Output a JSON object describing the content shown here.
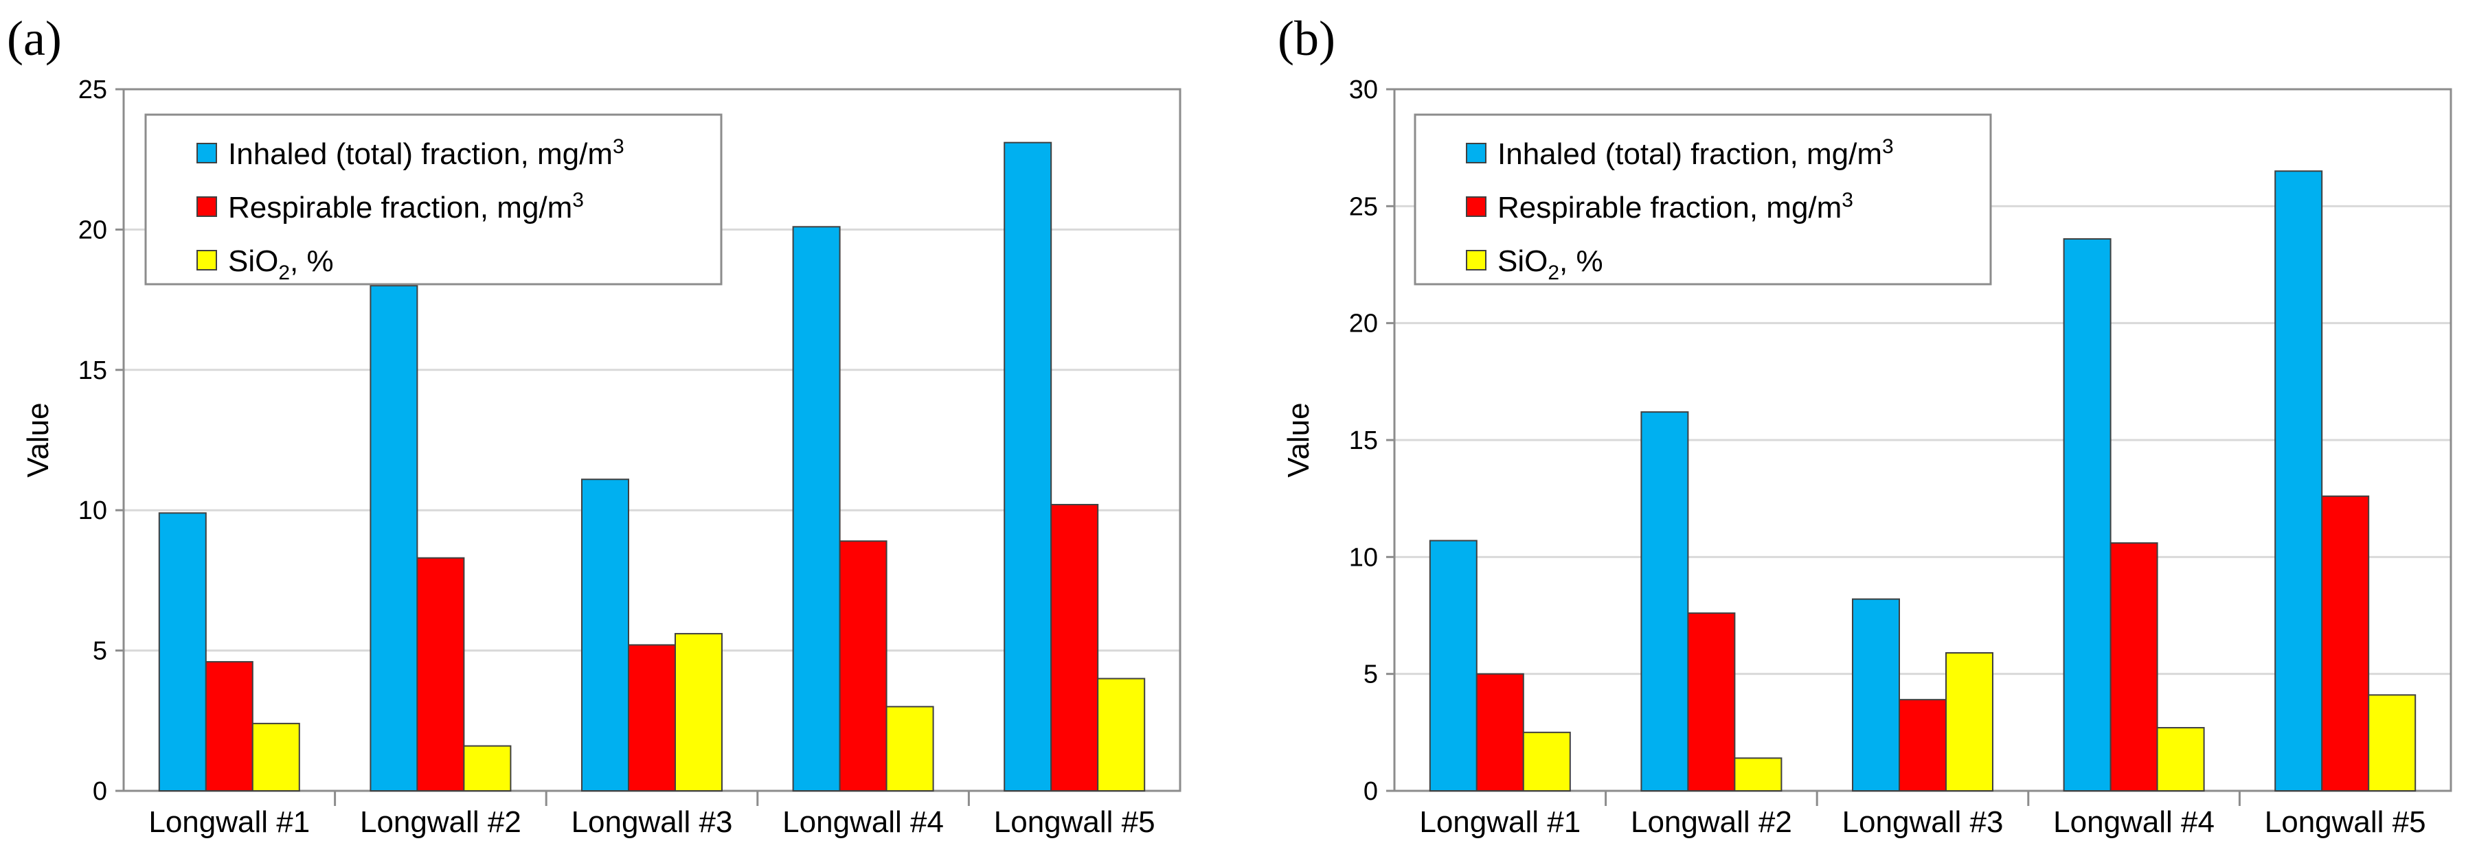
{
  "colors": {
    "inhaled": "#00b0f0",
    "respirable": "#ff0000",
    "sio2": "#ffff00"
  },
  "chart_data": [
    {
      "panel": "(a)",
      "type": "bar",
      "categories": [
        "Longwall #1",
        "Longwall #2",
        "Longwall #3",
        "Longwall #4",
        "Longwall #5"
      ],
      "series": [
        {
          "name": "Inhaled (total) fraction, mg/m3",
          "values": [
            9.9,
            18.0,
            11.1,
            20.1,
            23.1
          ]
        },
        {
          "name": "Respirable fraction, mg/m3",
          "values": [
            4.6,
            8.3,
            5.2,
            8.9,
            10.2
          ]
        },
        {
          "name": "SiO2, %",
          "values": [
            2.4,
            1.6,
            5.6,
            3.0,
            4.0
          ]
        }
      ],
      "yticks": [
        0,
        5,
        10,
        15,
        20,
        25
      ],
      "ylim": [
        0,
        25
      ],
      "ylabel": "Value",
      "xlabel": "",
      "title": "",
      "legend": {
        "position": "top-left",
        "items": [
          {
            "pre": "Inhaled (total) fraction, mg/m",
            "sup": "3",
            "sub": "",
            "post": ""
          },
          {
            "pre": "Respirable fraction, mg/m",
            "sup": "3",
            "sub": "",
            "post": ""
          },
          {
            "pre": "SiO",
            "sup": "",
            "sub": "2",
            "post": ", %"
          }
        ]
      }
    },
    {
      "panel": "(b)",
      "type": "bar",
      "categories": [
        "Longwall #1",
        "Longwall #2",
        "Longwall #3",
        "Longwall #4",
        "Longwall #5"
      ],
      "series": [
        {
          "name": "Inhaled (total) fraction, mg/m3",
          "values": [
            10.7,
            16.2,
            8.2,
            23.6,
            26.5
          ]
        },
        {
          "name": "Respirable fraction, mg/m3",
          "values": [
            5.0,
            7.6,
            3.9,
            10.6,
            12.6
          ]
        },
        {
          "name": "SiO2, %",
          "values": [
            2.5,
            1.4,
            5.9,
            2.7,
            4.1
          ]
        }
      ],
      "yticks": [
        0,
        5,
        10,
        15,
        20,
        25,
        30
      ],
      "ylim": [
        0,
        30
      ],
      "ylabel": "Value",
      "xlabel": "",
      "title": "",
      "legend": {
        "position": "top-left",
        "items": [
          {
            "pre": "Inhaled (total) fraction, mg/m",
            "sup": "3",
            "sub": "",
            "post": ""
          },
          {
            "pre": "Respirable fraction, mg/m",
            "sup": "3",
            "sub": "",
            "post": ""
          },
          {
            "pre": "SiO",
            "sup": "",
            "sub": "2",
            "post": ", %"
          }
        ]
      }
    }
  ]
}
